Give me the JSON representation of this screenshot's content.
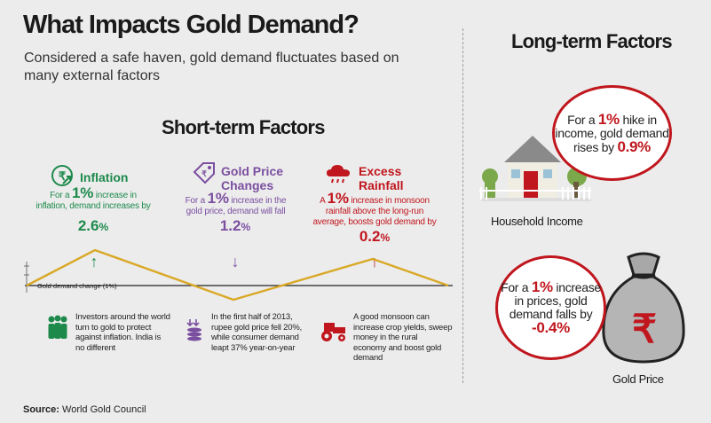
{
  "title": "What Impacts Gold Demand?",
  "subtitle": "Considered a safe haven, gold demand fluctuates based on many external factors",
  "short_term": {
    "heading": "Short-term Factors",
    "inflation": {
      "name": "Inflation",
      "desc_pre": "For a ",
      "desc_big": "1%",
      "desc_post": " increase in inflation, demand increases by",
      "value": "2.6",
      "unit": "%",
      "arrow": "↑",
      "note": "Investors around the world turn to gold to protect against inflation. India is no different"
    },
    "gold_price": {
      "name_line1": "Gold Price",
      "name_line2": "Changes",
      "desc_pre": "For a ",
      "desc_big": "1%",
      "desc_post": " increase in the gold price, demand will fall",
      "value": "1.2",
      "unit": "%",
      "arrow": "↓",
      "note": "In the first half of 2013, rupee gold price fell 20%, while consumer demand leapt 37% year-on-year"
    },
    "rainfall": {
      "name_line1": "Excess",
      "name_line2": "Rainfall",
      "desc_pre": "A ",
      "desc_big": "1%",
      "desc_post": " increase in monsoon rainfall above the long-run average, boosts gold demand by",
      "value": "0.2",
      "unit": "%",
      "arrow": "↑",
      "note": "A good monsoon can increase crop yields, sweep money in the rural economy and boost gold demand"
    },
    "chart_label": "Gold demand change (1%)"
  },
  "long_term": {
    "heading": "Long-term Factors",
    "income": {
      "text_pre": "For a ",
      "big": "1%",
      "text_mid": " hike in income, gold demand rises by ",
      "value": "0.9%",
      "label": "Household Income"
    },
    "price": {
      "text_pre": "For a ",
      "big": "1%",
      "text_mid": " increase in prices, gold demand falls by ",
      "value": "-0.4%",
      "label": "Gold Price"
    }
  },
  "source": {
    "label": "Source:",
    "text": " World Gold Council"
  },
  "colors": {
    "green": "#1d8a4c",
    "purple": "#7b4fa0",
    "red": "#c0161d",
    "gold_line": "#d9a826"
  }
}
